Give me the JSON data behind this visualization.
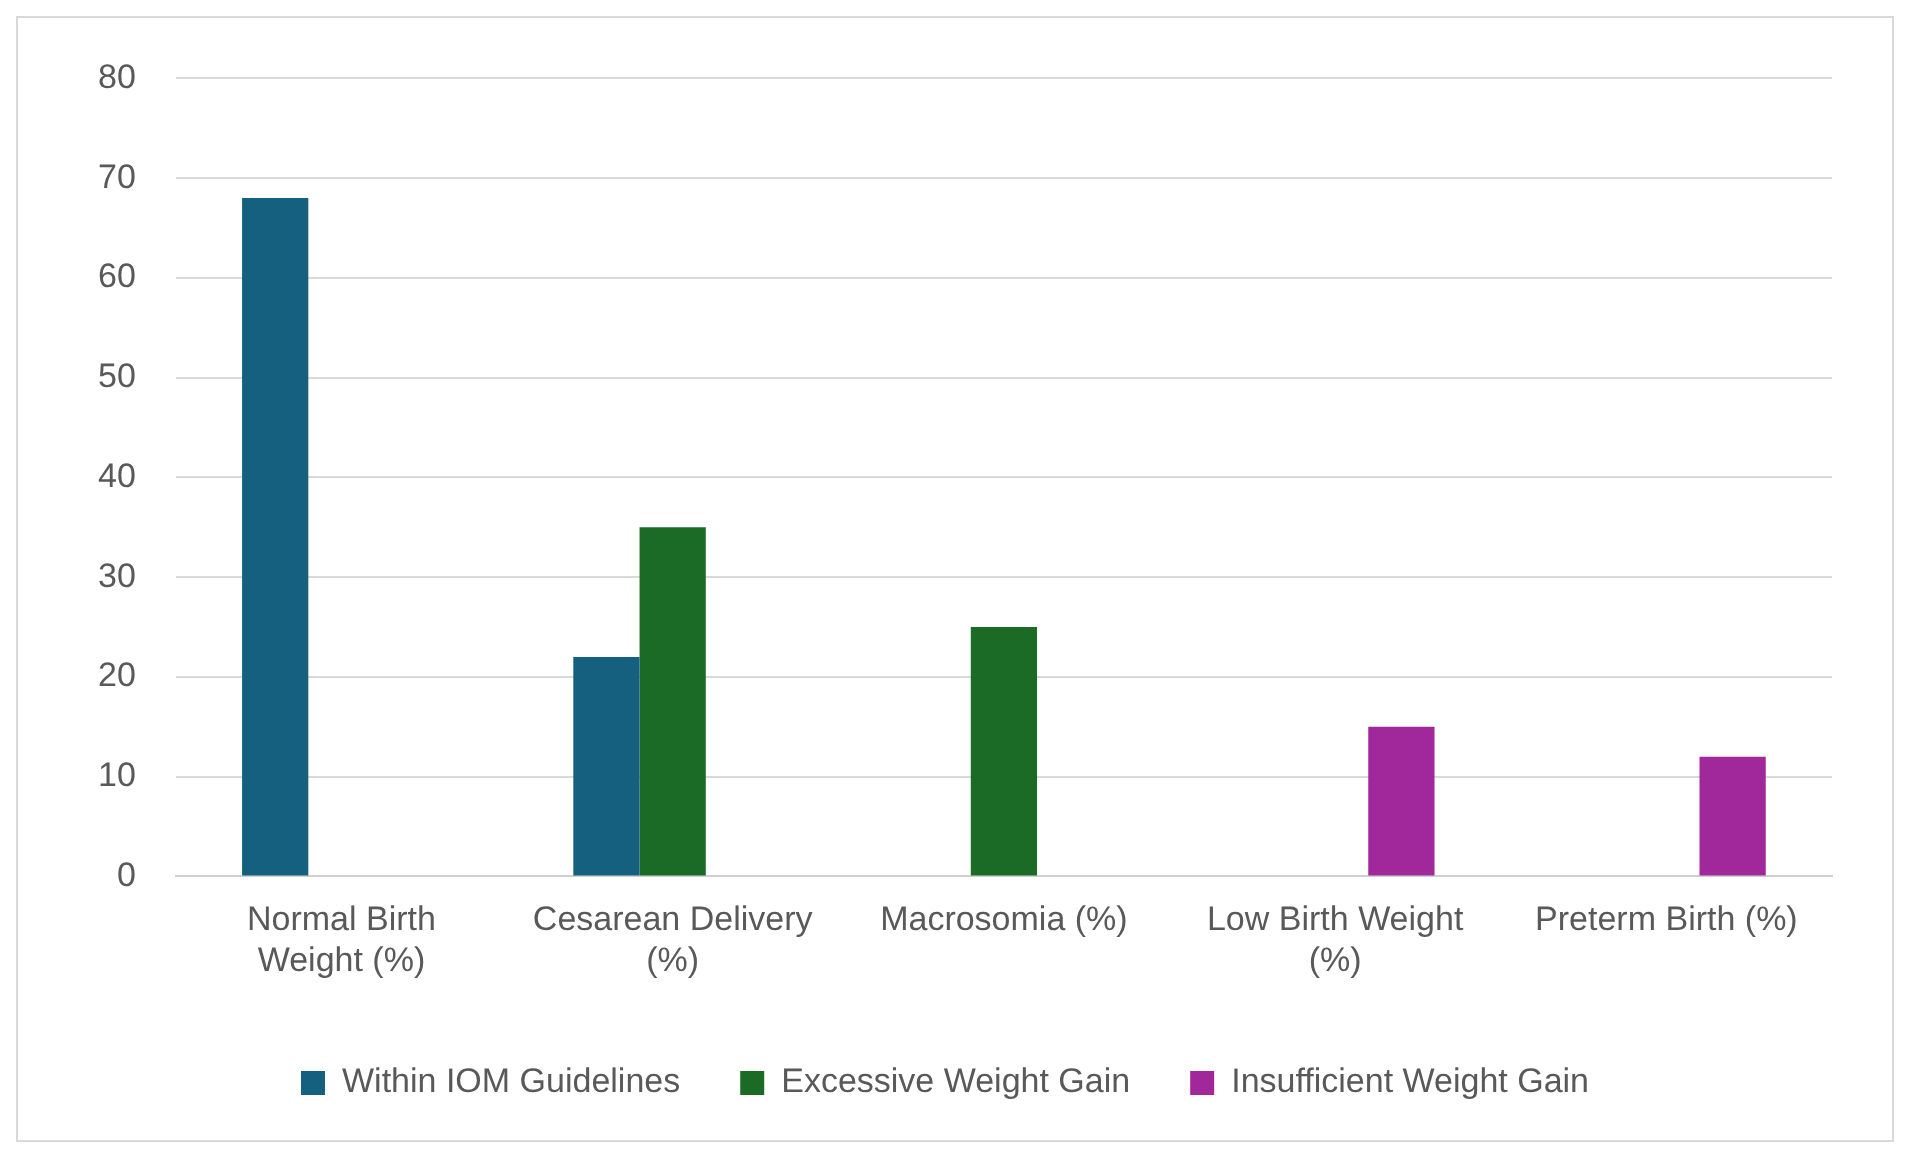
{
  "chart_data": {
    "type": "bar",
    "categories": [
      "Normal Birth Weight (%)",
      "Cesarean Delivery (%)",
      "Macrosomia (%)",
      "Low Birth Weight (%)",
      "Preterm Birth (%)"
    ],
    "series": [
      {
        "name": "Within IOM Guidelines",
        "color": "#15607f",
        "values": [
          68,
          22,
          null,
          null,
          null
        ]
      },
      {
        "name": "Excessive Weight Gain",
        "color": "#1b6b27",
        "values": [
          null,
          35,
          25,
          null,
          null
        ]
      },
      {
        "name": "Insufficient Weight Gain",
        "color": "#a0289a",
        "values": [
          null,
          null,
          null,
          15,
          12
        ]
      }
    ],
    "ylim": [
      0,
      80
    ],
    "yticks": [
      0,
      10,
      20,
      30,
      40,
      50,
      60,
      70,
      80
    ],
    "grid": "y",
    "legend": "bottom"
  }
}
